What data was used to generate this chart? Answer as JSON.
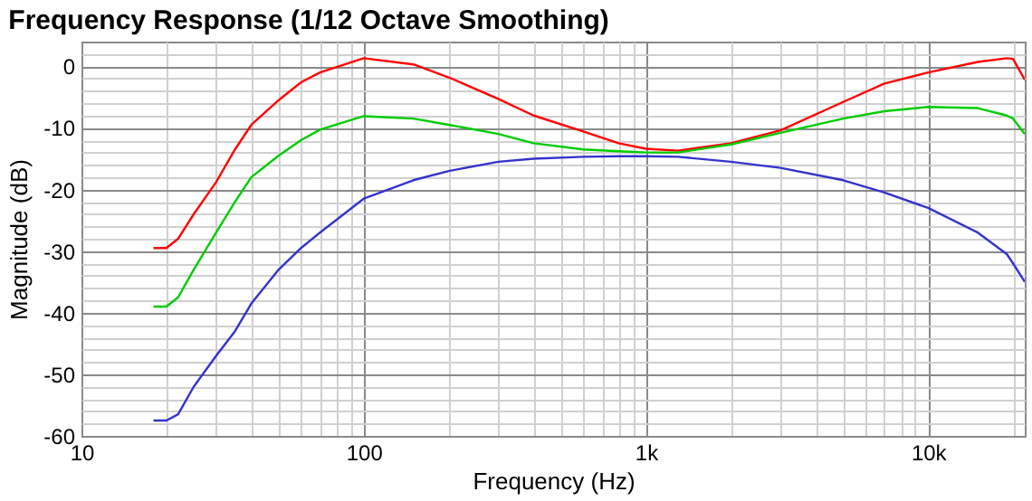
{
  "chart_data": {
    "type": "line",
    "title": "Frequency Response (1/12 Octave Smoothing)",
    "xlabel": "Frequency (Hz)",
    "ylabel": "Magnitude (dB)",
    "log": "x",
    "grid": true,
    "x": [
      18,
      20,
      22,
      25,
      30,
      35,
      40,
      50,
      60,
      70,
      100,
      150,
      200,
      300,
      400,
      600,
      800,
      1000,
      1300,
      2000,
      3000,
      5000,
      7000,
      10000,
      15000,
      19000,
      20000,
      22000
    ],
    "series": [
      {
        "color": "#ff0000",
        "values": [
          -29.5,
          -29.5,
          -28,
          -24,
          -18.8,
          -13.5,
          -9.5,
          -5.5,
          -2.6,
          -1,
          1.3,
          0.3,
          -1.8,
          -5.3,
          -8,
          -10.6,
          -12.5,
          -13.4,
          -13.7,
          -12.5,
          -10.4,
          -5.8,
          -2.8,
          -1,
          0.7,
          1.3,
          1.2,
          -2.2
        ]
      },
      {
        "color": "#00cc00",
        "values": [
          -39,
          -39,
          -37.5,
          -33,
          -27,
          -22,
          -18,
          -14.5,
          -12,
          -10.3,
          -8.1,
          -8.5,
          -9.5,
          -11,
          -12.5,
          -13.5,
          -13.8,
          -14,
          -14,
          -12.7,
          -10.8,
          -8.5,
          -7.3,
          -6.6,
          -6.8,
          -8,
          -8.5,
          -11
        ]
      },
      {
        "color": "#3333cc",
        "values": [
          -57.5,
          -57.5,
          -56.5,
          -52,
          -47,
          -43,
          -38.5,
          -33,
          -29.5,
          -27,
          -21.5,
          -18.5,
          -17,
          -15.5,
          -15,
          -14.7,
          -14.6,
          -14.6,
          -14.7,
          -15.5,
          -16.5,
          -18.5,
          -20.5,
          -23,
          -27,
          -30.5,
          -32,
          -35
        ]
      }
    ],
    "xlim": [
      10,
      22000
    ],
    "xticks": [
      {
        "value": 10,
        "label": "10"
      },
      {
        "value": 20,
        "label": null
      },
      {
        "value": 30,
        "label": null
      },
      {
        "value": 40,
        "label": null
      },
      {
        "value": 50,
        "label": null
      },
      {
        "value": 60,
        "label": null
      },
      {
        "value": 70,
        "label": null
      },
      {
        "value": 80,
        "label": null
      },
      {
        "value": 90,
        "label": null
      },
      {
        "value": 100,
        "label": "100"
      },
      {
        "value": 200,
        "label": null
      },
      {
        "value": 300,
        "label": null
      },
      {
        "value": 400,
        "label": null
      },
      {
        "value": 500,
        "label": null
      },
      {
        "value": 600,
        "label": null
      },
      {
        "value": 700,
        "label": null
      },
      {
        "value": 800,
        "label": null
      },
      {
        "value": 900,
        "label": null
      },
      {
        "value": 1000,
        "label": "1k"
      },
      {
        "value": 2000,
        "label": null
      },
      {
        "value": 3000,
        "label": null
      },
      {
        "value": 4000,
        "label": null
      },
      {
        "value": 5000,
        "label": null
      },
      {
        "value": 6000,
        "label": null
      },
      {
        "value": 7000,
        "label": null
      },
      {
        "value": 8000,
        "label": null
      },
      {
        "value": 9000,
        "label": null
      },
      {
        "value": 10000,
        "label": "10k"
      },
      {
        "value": 20000,
        "label": null
      }
    ],
    "ylim": [
      -60,
      4
    ],
    "yticks": [
      -60,
      {
        "value": -58,
        "label": null
      },
      {
        "value": -56,
        "label": null
      },
      {
        "value": -54,
        "label": null
      },
      {
        "value": -52,
        "label": null
      },
      -50,
      {
        "value": -48,
        "label": null
      },
      {
        "value": -46,
        "label": null
      },
      {
        "value": -44,
        "label": null
      },
      {
        "value": -42,
        "label": null
      },
      -40,
      {
        "value": -38,
        "label": null
      },
      {
        "value": -36,
        "label": null
      },
      {
        "value": -34,
        "label": null
      },
      {
        "value": -32,
        "label": null
      },
      -30,
      {
        "value": -28,
        "label": null
      },
      {
        "value": -26,
        "label": null
      },
      {
        "value": -24,
        "label": null
      },
      {
        "value": -22,
        "label": null
      },
      -20,
      {
        "value": -18,
        "label": null
      },
      {
        "value": -16,
        "label": null
      },
      {
        "value": -14,
        "label": null
      },
      {
        "value": -12,
        "label": null
      },
      -10,
      {
        "value": -8,
        "label": null
      },
      {
        "value": -6,
        "label": null
      },
      {
        "value": -4,
        "label": null
      },
      {
        "value": -2,
        "label": null
      },
      0,
      {
        "value": 2,
        "label": null
      }
    ]
  }
}
